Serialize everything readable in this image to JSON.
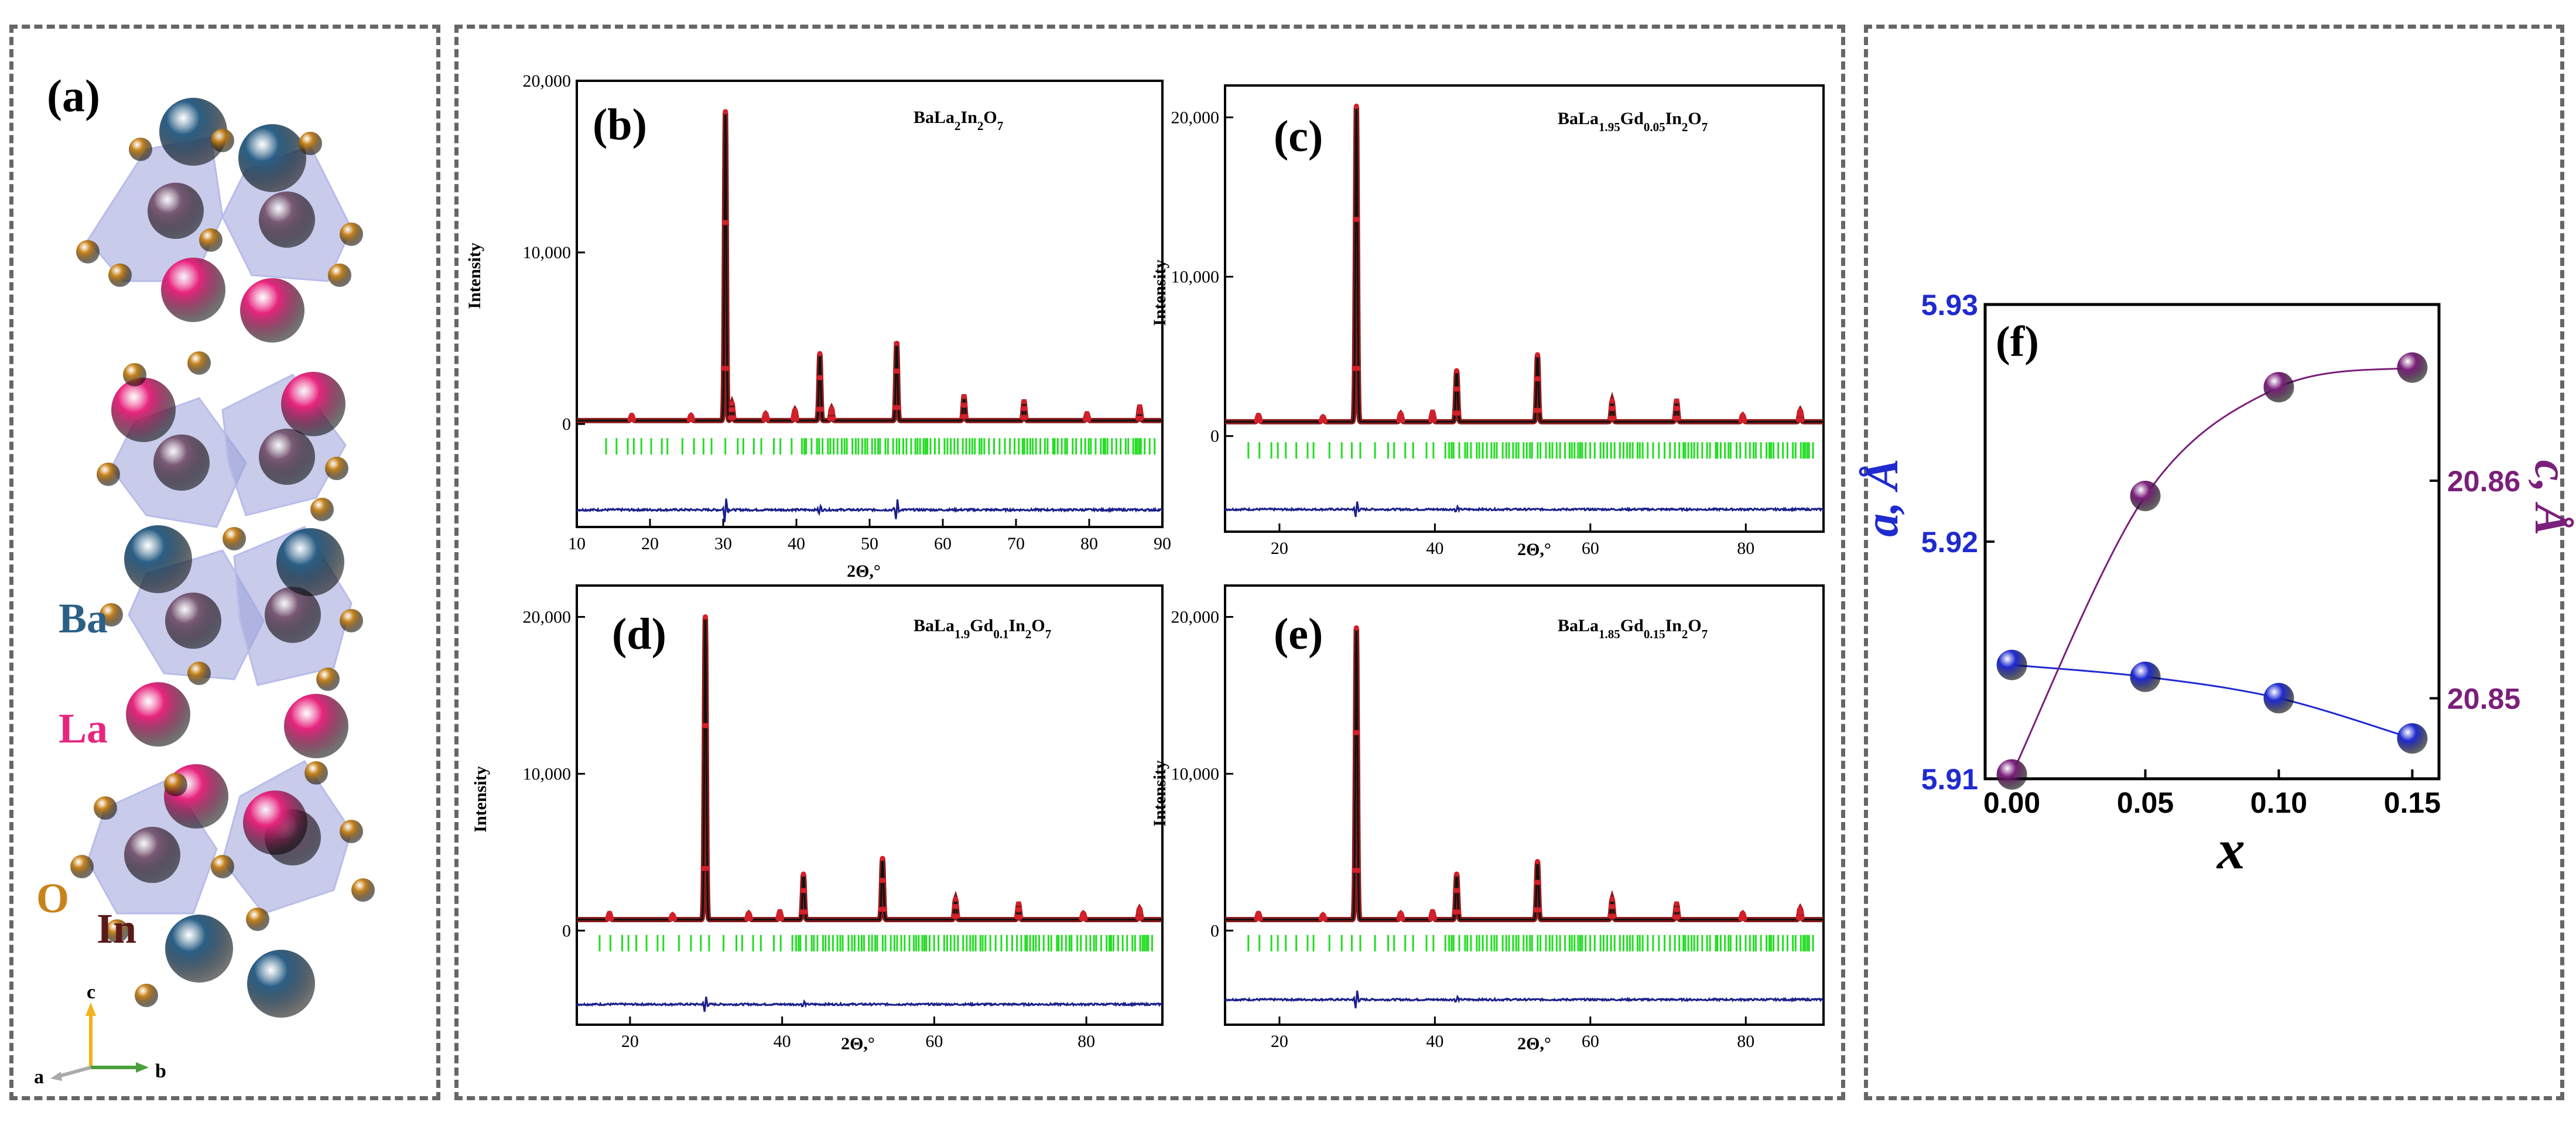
{
  "structure": {
    "label": "(a)",
    "atoms": {
      "ba": "Ba",
      "la": "La",
      "o": "O",
      "in": "In"
    },
    "axes": {
      "c": "c",
      "a": "a",
      "b": "b"
    },
    "colors": {
      "ba": "#2b5f86",
      "la": "#e8257e",
      "o": "#c8841c",
      "in": "#7a5a76",
      "octahedron": "#9aa0d8",
      "axis_c": "#f2b21a",
      "axis_b": "#4aa03c",
      "axis_a": "#aaaaaa"
    }
  },
  "colors": {
    "observed": "#d4202a",
    "calculated": "#111111",
    "background": "#8b1a1a",
    "bragg": "#22dd22",
    "difference": "#1a1f8a",
    "a_series": "#1f2ad0",
    "c_series": "#7a1f7a"
  },
  "chart_data": [
    {
      "type": "line",
      "panel": "(b)",
      "compound": {
        "base": "BaLa",
        "sub1": "2",
        "mid": "In",
        "sub2": "2",
        "end": "O",
        "sub3": "7"
      },
      "xlabel": "2Θ,°",
      "ylabel": "Intensity",
      "xlim": [
        10,
        90
      ],
      "ylim": [
        -6000,
        20000
      ],
      "xticks": [
        10,
        20,
        30,
        40,
        50,
        60,
        70,
        80,
        90
      ],
      "yticks": [
        0,
        10000,
        20000
      ],
      "ytick_labels": [
        "0",
        "10,000",
        "20,000"
      ],
      "baseline": 200,
      "peaks": [
        [
          17.5,
          300
        ],
        [
          25.6,
          300
        ],
        [
          30.3,
          18000
        ],
        [
          31.2,
          1000
        ],
        [
          35.8,
          400
        ],
        [
          39.8,
          600
        ],
        [
          43.2,
          3900
        ],
        [
          44.8,
          700
        ],
        [
          53.7,
          4500
        ],
        [
          62.9,
          1400
        ],
        [
          71.1,
          1100
        ],
        [
          79.7,
          400
        ],
        [
          86.9,
          800
        ]
      ],
      "bragg_level": -1300,
      "diff_level": -5000,
      "diff_features": [
        [
          30.3,
          900
        ],
        [
          43.2,
          300
        ],
        [
          53.7,
          700
        ]
      ],
      "bragg_range": [
        14,
        89
      ]
    },
    {
      "type": "line",
      "panel": "(c)",
      "compound": {
        "base": "BaLa",
        "sub1": "1.95",
        "mid": "Gd",
        "sub2": "0.05",
        "mid2": "In",
        "sub3": "2",
        "end": "O",
        "sub4": "7"
      },
      "xlabel": "2Θ,°",
      "ylabel": "Intensity",
      "xlim": [
        13,
        90
      ],
      "ylim": [
        -6000,
        22000
      ],
      "xticks": [
        20,
        40,
        60,
        80
      ],
      "yticks": [
        0,
        10000,
        20000
      ],
      "ytick_labels": [
        "0",
        "10,000",
        "20,000"
      ],
      "baseline": 900,
      "peaks": [
        [
          17.3,
          400
        ],
        [
          25.6,
          300
        ],
        [
          29.9,
          19800
        ],
        [
          35.6,
          500
        ],
        [
          39.7,
          600
        ],
        [
          42.8,
          3200
        ],
        [
          53.2,
          4200
        ],
        [
          62.8,
          1300
        ],
        [
          71.1,
          1300
        ],
        [
          79.6,
          400
        ],
        [
          87.0,
          700
        ]
      ],
      "bragg_level": -900,
      "diff_level": -4600,
      "diff_features": [
        [
          29.9,
          600
        ],
        [
          42.8,
          200
        ]
      ],
      "bragg_range": [
        16,
        89
      ]
    },
    {
      "type": "line",
      "panel": "(d)",
      "compound": {
        "base": "BaLa",
        "sub1": "1.9",
        "mid": "Gd",
        "sub2": "0.1",
        "mid2": "In",
        "sub3": "2",
        "end": "O",
        "sub4": "7"
      },
      "xlabel": "2Θ,°",
      "ylabel": "Intensity",
      "xlim": [
        13,
        90
      ],
      "ylim": [
        -6000,
        22000
      ],
      "xticks": [
        20,
        40,
        60,
        80
      ],
      "yticks": [
        0,
        10000,
        20000
      ],
      "ytick_labels": [
        "0",
        "10,000",
        "20,000"
      ],
      "baseline": 700,
      "peaks": [
        [
          17.3,
          400
        ],
        [
          25.6,
          300
        ],
        [
          29.9,
          19300
        ],
        [
          35.6,
          400
        ],
        [
          39.7,
          500
        ],
        [
          42.8,
          2900
        ],
        [
          53.2,
          3900
        ],
        [
          62.8,
          1300
        ],
        [
          71.1,
          1000
        ],
        [
          79.6,
          400
        ],
        [
          87.0,
          700
        ]
      ],
      "bragg_level": -800,
      "diff_level": -4700,
      "diff_features": [
        [
          29.9,
          600
        ],
        [
          42.8,
          200
        ]
      ],
      "bragg_range": [
        16,
        89
      ]
    },
    {
      "type": "line",
      "panel": "(e)",
      "compound": {
        "base": "BaLa",
        "sub1": "1.85",
        "mid": "Gd",
        "sub2": "0.15",
        "mid2": "In",
        "sub3": "2",
        "end": "O",
        "sub4": "7"
      },
      "xlabel": "2Θ,°",
      "ylabel": "Intensity",
      "xlim": [
        13,
        90
      ],
      "ylim": [
        -6000,
        22000
      ],
      "xticks": [
        20,
        40,
        60,
        80
      ],
      "yticks": [
        0,
        10000,
        20000
      ],
      "ytick_labels": [
        "0",
        "10,000",
        "20,000"
      ],
      "baseline": 700,
      "peaks": [
        [
          17.3,
          400
        ],
        [
          25.6,
          300
        ],
        [
          29.9,
          18600
        ],
        [
          35.6,
          400
        ],
        [
          39.7,
          500
        ],
        [
          42.8,
          2900
        ],
        [
          53.2,
          3700
        ],
        [
          62.8,
          1300
        ],
        [
          71.1,
          1000
        ],
        [
          79.6,
          400
        ],
        [
          87.0,
          700
        ]
      ],
      "bragg_level": -800,
      "diff_level": -4400,
      "diff_features": [
        [
          29.9,
          700
        ],
        [
          42.8,
          200
        ]
      ],
      "bragg_range": [
        16,
        89
      ]
    },
    {
      "type": "scatter",
      "panel": "(f)",
      "xlabel": "x",
      "ylabel_left": "a, Å",
      "ylabel_right": "c, Å",
      "x": [
        0.0,
        0.05,
        0.1,
        0.15
      ],
      "xlim": [
        -0.01,
        0.16
      ],
      "xticks": [
        0.0,
        0.05,
        0.1,
        0.15
      ],
      "xtick_labels": [
        "0.00",
        "0.05",
        "0.10",
        "0.15"
      ],
      "ylim_left": [
        5.91,
        5.93
      ],
      "yticks_left": [
        5.91,
        5.92,
        5.93
      ],
      "ytick_labels_left": [
        "5.91",
        "5.92",
        "5.93"
      ],
      "ylim_right": [
        20.8463,
        20.8681
      ],
      "yticks_right": [
        20.85,
        20.86
      ],
      "ytick_labels_right": [
        "20.85",
        "20.86"
      ],
      "series": [
        {
          "name": "a",
          "axis": "left",
          "values": [
            5.9148,
            5.9143,
            5.9134,
            5.9117
          ]
        },
        {
          "name": "c",
          "axis": "right",
          "values": [
            20.8465,
            20.8593,
            20.8643,
            20.8652
          ]
        }
      ]
    }
  ]
}
